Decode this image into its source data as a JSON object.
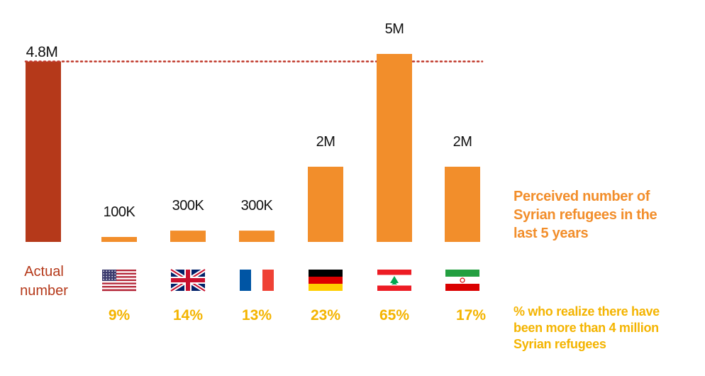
{
  "colors": {
    "actual": "#b5391a",
    "perceived": "#f28e2b",
    "percent": "#f4b400",
    "reference_line": "#c0392b",
    "value_label": "#111111"
  },
  "chart_data": {
    "type": "bar",
    "unit": "millions",
    "ylim": [
      0,
      5.0
    ],
    "reference_line": {
      "value": 4.8,
      "style": "dotted"
    },
    "grid": false,
    "actual": {
      "label_lines": [
        "Actual",
        "number"
      ],
      "value": 4.8,
      "value_label": "4.8M"
    },
    "categories": [
      {
        "flag": "usa-flag-icon",
        "value": 0.1,
        "value_label": "100K",
        "percent": "9%"
      },
      {
        "flag": "uk-flag-icon",
        "value": 0.3,
        "value_label": "300K",
        "percent": "14%"
      },
      {
        "flag": "france-flag-icon",
        "value": 0.3,
        "value_label": "300K",
        "percent": "13%"
      },
      {
        "flag": "germany-flag-icon",
        "value": 2.0,
        "value_label": "2M",
        "percent": "23%"
      },
      {
        "flag": "lebanon-flag-icon",
        "value": 5.0,
        "value_label": "5M",
        "percent": "65%"
      },
      {
        "flag": "iran-flag-icon",
        "value": 2.0,
        "value_label": "2M",
        "percent": "17%"
      }
    ]
  },
  "notes": {
    "perceived_lines": [
      "Perceived number of",
      "Syrian refugees in the",
      "last 5 years"
    ],
    "realize_lines": [
      "% who realize there have",
      "been more than 4 million",
      "Syrian refugees"
    ]
  }
}
